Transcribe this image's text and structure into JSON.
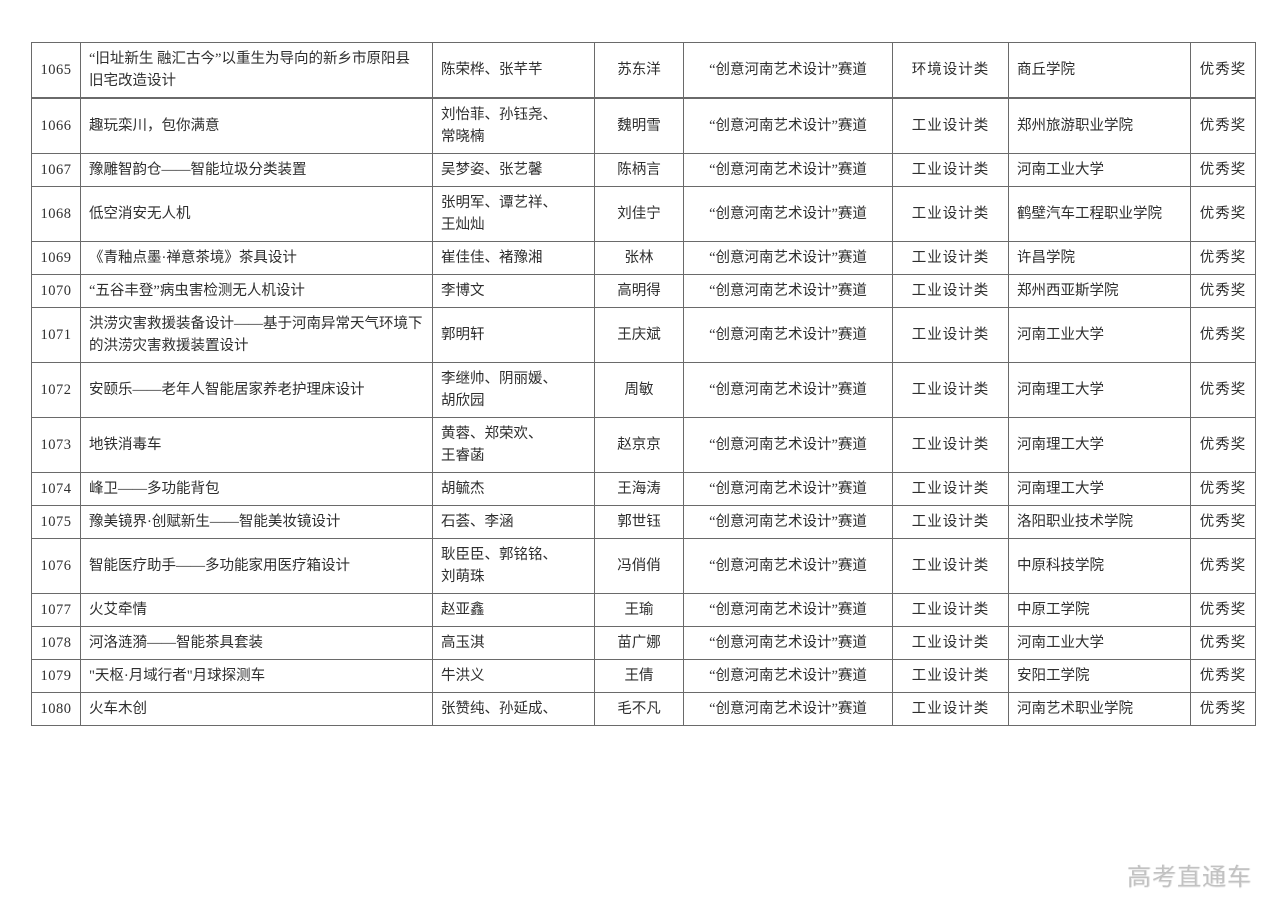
{
  "page": {
    "watermark": "高考直通车"
  },
  "colors": {
    "border": "#6a6a6a",
    "text": "#2e2e2e",
    "watermark": "#c2c2c2",
    "background": "#ffffff"
  },
  "table": {
    "columns": [
      {
        "key": "no"
      },
      {
        "key": "project"
      },
      {
        "key": "members"
      },
      {
        "key": "advisor"
      },
      {
        "key": "track"
      },
      {
        "key": "category"
      },
      {
        "key": "school"
      },
      {
        "key": "award"
      }
    ],
    "rows": [
      {
        "no": "1065",
        "project": "“旧址新生 融汇古今”以重生为导向的新乡市原阳县旧宅改造设计",
        "members": "陈荣桦、张芊芊",
        "advisor": "苏东洋",
        "track": "“创意河南艺术设计”赛道",
        "category": "环境设计类",
        "school": "商丘学院",
        "award": "优秀奖"
      },
      {
        "no": "1066",
        "project": "趣玩栾川，包你满意",
        "members": "刘怡菲、孙钰尧、\n常晓楠",
        "advisor": "魏明雪",
        "track": "“创意河南艺术设计”赛道",
        "category": "工业设计类",
        "school": "郑州旅游职业学院",
        "award": "优秀奖"
      },
      {
        "no": "1067",
        "project": "豫雕智韵仓——智能垃圾分类装置",
        "members": "吴梦姿、张艺馨",
        "advisor": "陈柄言",
        "track": "“创意河南艺术设计”赛道",
        "category": "工业设计类",
        "school": "河南工业大学",
        "award": "优秀奖"
      },
      {
        "no": "1068",
        "project": "低空消安无人机",
        "members": "张明军、谭艺祥、\n王灿灿",
        "advisor": "刘佳宁",
        "track": "“创意河南艺术设计”赛道",
        "category": "工业设计类",
        "school": "鹤壁汽车工程职业学院",
        "award": "优秀奖"
      },
      {
        "no": "1069",
        "project": "《青釉点墨·禅意茶境》茶具设计",
        "members": "崔佳佳、褚豫湘",
        "advisor": "张林",
        "track": "“创意河南艺术设计”赛道",
        "category": "工业设计类",
        "school": "许昌学院",
        "award": "优秀奖"
      },
      {
        "no": "1070",
        "project": "“五谷丰登”病虫害检测无人机设计",
        "members": "李博文",
        "advisor": "高明得",
        "track": "“创意河南艺术设计”赛道",
        "category": "工业设计类",
        "school": "郑州西亚斯学院",
        "award": "优秀奖"
      },
      {
        "no": "1071",
        "project": "洪涝灾害救援装备设计——基于河南异常天气环境下的洪涝灾害救援装置设计",
        "members": "郭明轩",
        "advisor": "王庆斌",
        "track": "“创意河南艺术设计”赛道",
        "category": "工业设计类",
        "school": "河南工业大学",
        "award": "优秀奖"
      },
      {
        "no": "1072",
        "project": "安颐乐——老年人智能居家养老护理床设计",
        "members": "李继帅、阴丽媛、\n胡欣园",
        "advisor": "周敏",
        "track": "“创意河南艺术设计”赛道",
        "category": "工业设计类",
        "school": "河南理工大学",
        "award": "优秀奖"
      },
      {
        "no": "1073",
        "project": "地铁消毒车",
        "members": "黄蓉、郑荣欢、\n王睿菡",
        "advisor": "赵京京",
        "track": "“创意河南艺术设计”赛道",
        "category": "工业设计类",
        "school": "河南理工大学",
        "award": "优秀奖"
      },
      {
        "no": "1074",
        "project": "峰卫——多功能背包",
        "members": "胡毓杰",
        "advisor": "王海涛",
        "track": "“创意河南艺术设计”赛道",
        "category": "工业设计类",
        "school": "河南理工大学",
        "award": "优秀奖"
      },
      {
        "no": "1075",
        "project": "豫美镜界·创赋新生——智能美妆镜设计",
        "members": "石荟、李涵",
        "advisor": "郭世钰",
        "track": "“创意河南艺术设计”赛道",
        "category": "工业设计类",
        "school": "洛阳职业技术学院",
        "award": "优秀奖"
      },
      {
        "no": "1076",
        "project": "智能医疗助手——多功能家用医疗箱设计",
        "members": "耿臣臣、郭铭铭、\n刘萌珠",
        "advisor": "冯俏俏",
        "track": "“创意河南艺术设计”赛道",
        "category": "工业设计类",
        "school": "中原科技学院",
        "award": "优秀奖"
      },
      {
        "no": "1077",
        "project": "火艾牵情",
        "members": "赵亚鑫",
        "advisor": "王瑜",
        "track": "“创意河南艺术设计”赛道",
        "category": "工业设计类",
        "school": "中原工学院",
        "award": "优秀奖"
      },
      {
        "no": "1078",
        "project": "河洛涟漪——智能茶具套装",
        "members": "高玉淇",
        "advisor": "苗广娜",
        "track": "“创意河南艺术设计”赛道",
        "category": "工业设计类",
        "school": "河南工业大学",
        "award": "优秀奖"
      },
      {
        "no": "1079",
        "project": "\"天枢·月域行者\"月球探测车",
        "members": "牛洪义",
        "advisor": "王倩",
        "track": "“创意河南艺术设计”赛道",
        "category": "工业设计类",
        "school": "安阳工学院",
        "award": "优秀奖"
      },
      {
        "no": "1080",
        "project": "火车木创",
        "members": "张赞纯、孙延成、",
        "advisor": "毛不凡",
        "track": "“创意河南艺术设计”赛道",
        "category": "工业设计类",
        "school": "河南艺术职业学院",
        "award": "优秀奖"
      }
    ]
  }
}
